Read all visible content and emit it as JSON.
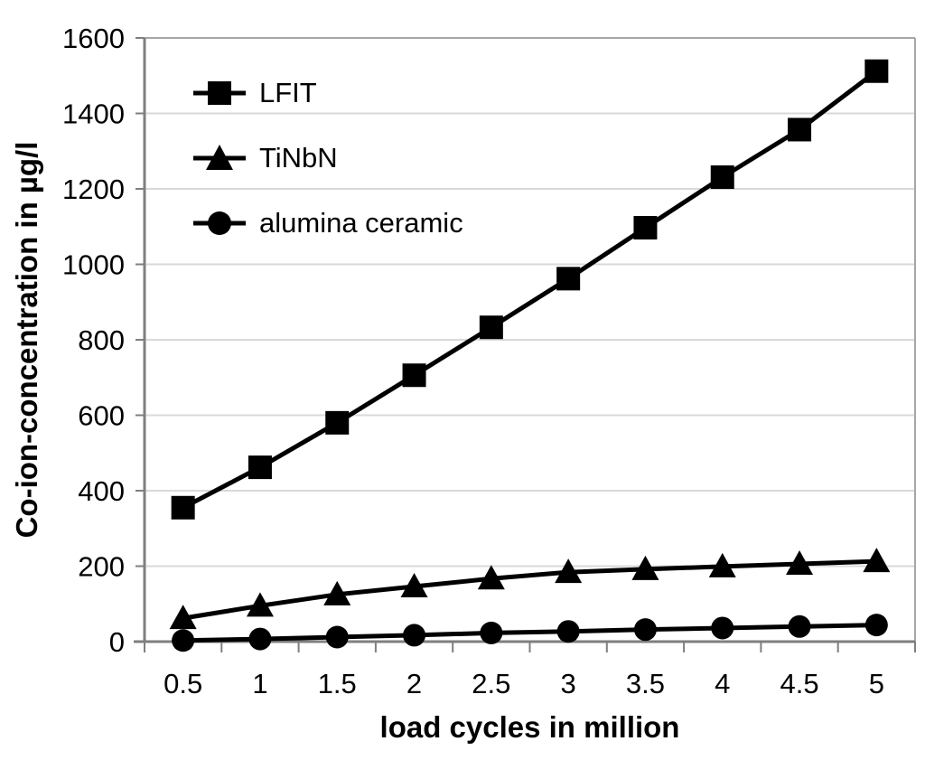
{
  "chart_data": {
    "type": "line",
    "title": "",
    "xlabel": "load cycles in million",
    "ylabel": "Co-ion-concentration in µg/l",
    "x": [
      0.5,
      1,
      1.5,
      2,
      2.5,
      3,
      3.5,
      4,
      4.5,
      5
    ],
    "xtick_labels": [
      "0.5",
      "1",
      "1.5",
      "2",
      "2.5",
      "3",
      "3.5",
      "4",
      "4.5",
      "5"
    ],
    "yticks": [
      0,
      200,
      400,
      600,
      800,
      1000,
      1200,
      1400,
      1600
    ],
    "ylim": [
      0,
      1600
    ],
    "grid": "horizontal-only",
    "legend_position": "inside-top-left",
    "series": [
      {
        "name": "LFIT",
        "marker": "square",
        "color": "#000000",
        "values": [
          355,
          462,
          580,
          706,
          833,
          962,
          1097,
          1231,
          1357,
          1512
        ]
      },
      {
        "name": "TiNbN",
        "marker": "triangle",
        "color": "#000000",
        "values": [
          62,
          95,
          125,
          146,
          167,
          184,
          192,
          199,
          206,
          213
        ]
      },
      {
        "name": "alumina ceramic",
        "marker": "circle",
        "color": "#000000",
        "values": [
          3,
          7,
          12,
          17,
          23,
          27,
          32,
          36,
          40,
          44
        ]
      }
    ],
    "colors": {
      "axis": "#7f7f7f",
      "gridline": "#d9d9d9",
      "plot_border": "#a6a6a6",
      "series_line": "#000000",
      "text": "#000000",
      "background": "#ffffff"
    }
  }
}
